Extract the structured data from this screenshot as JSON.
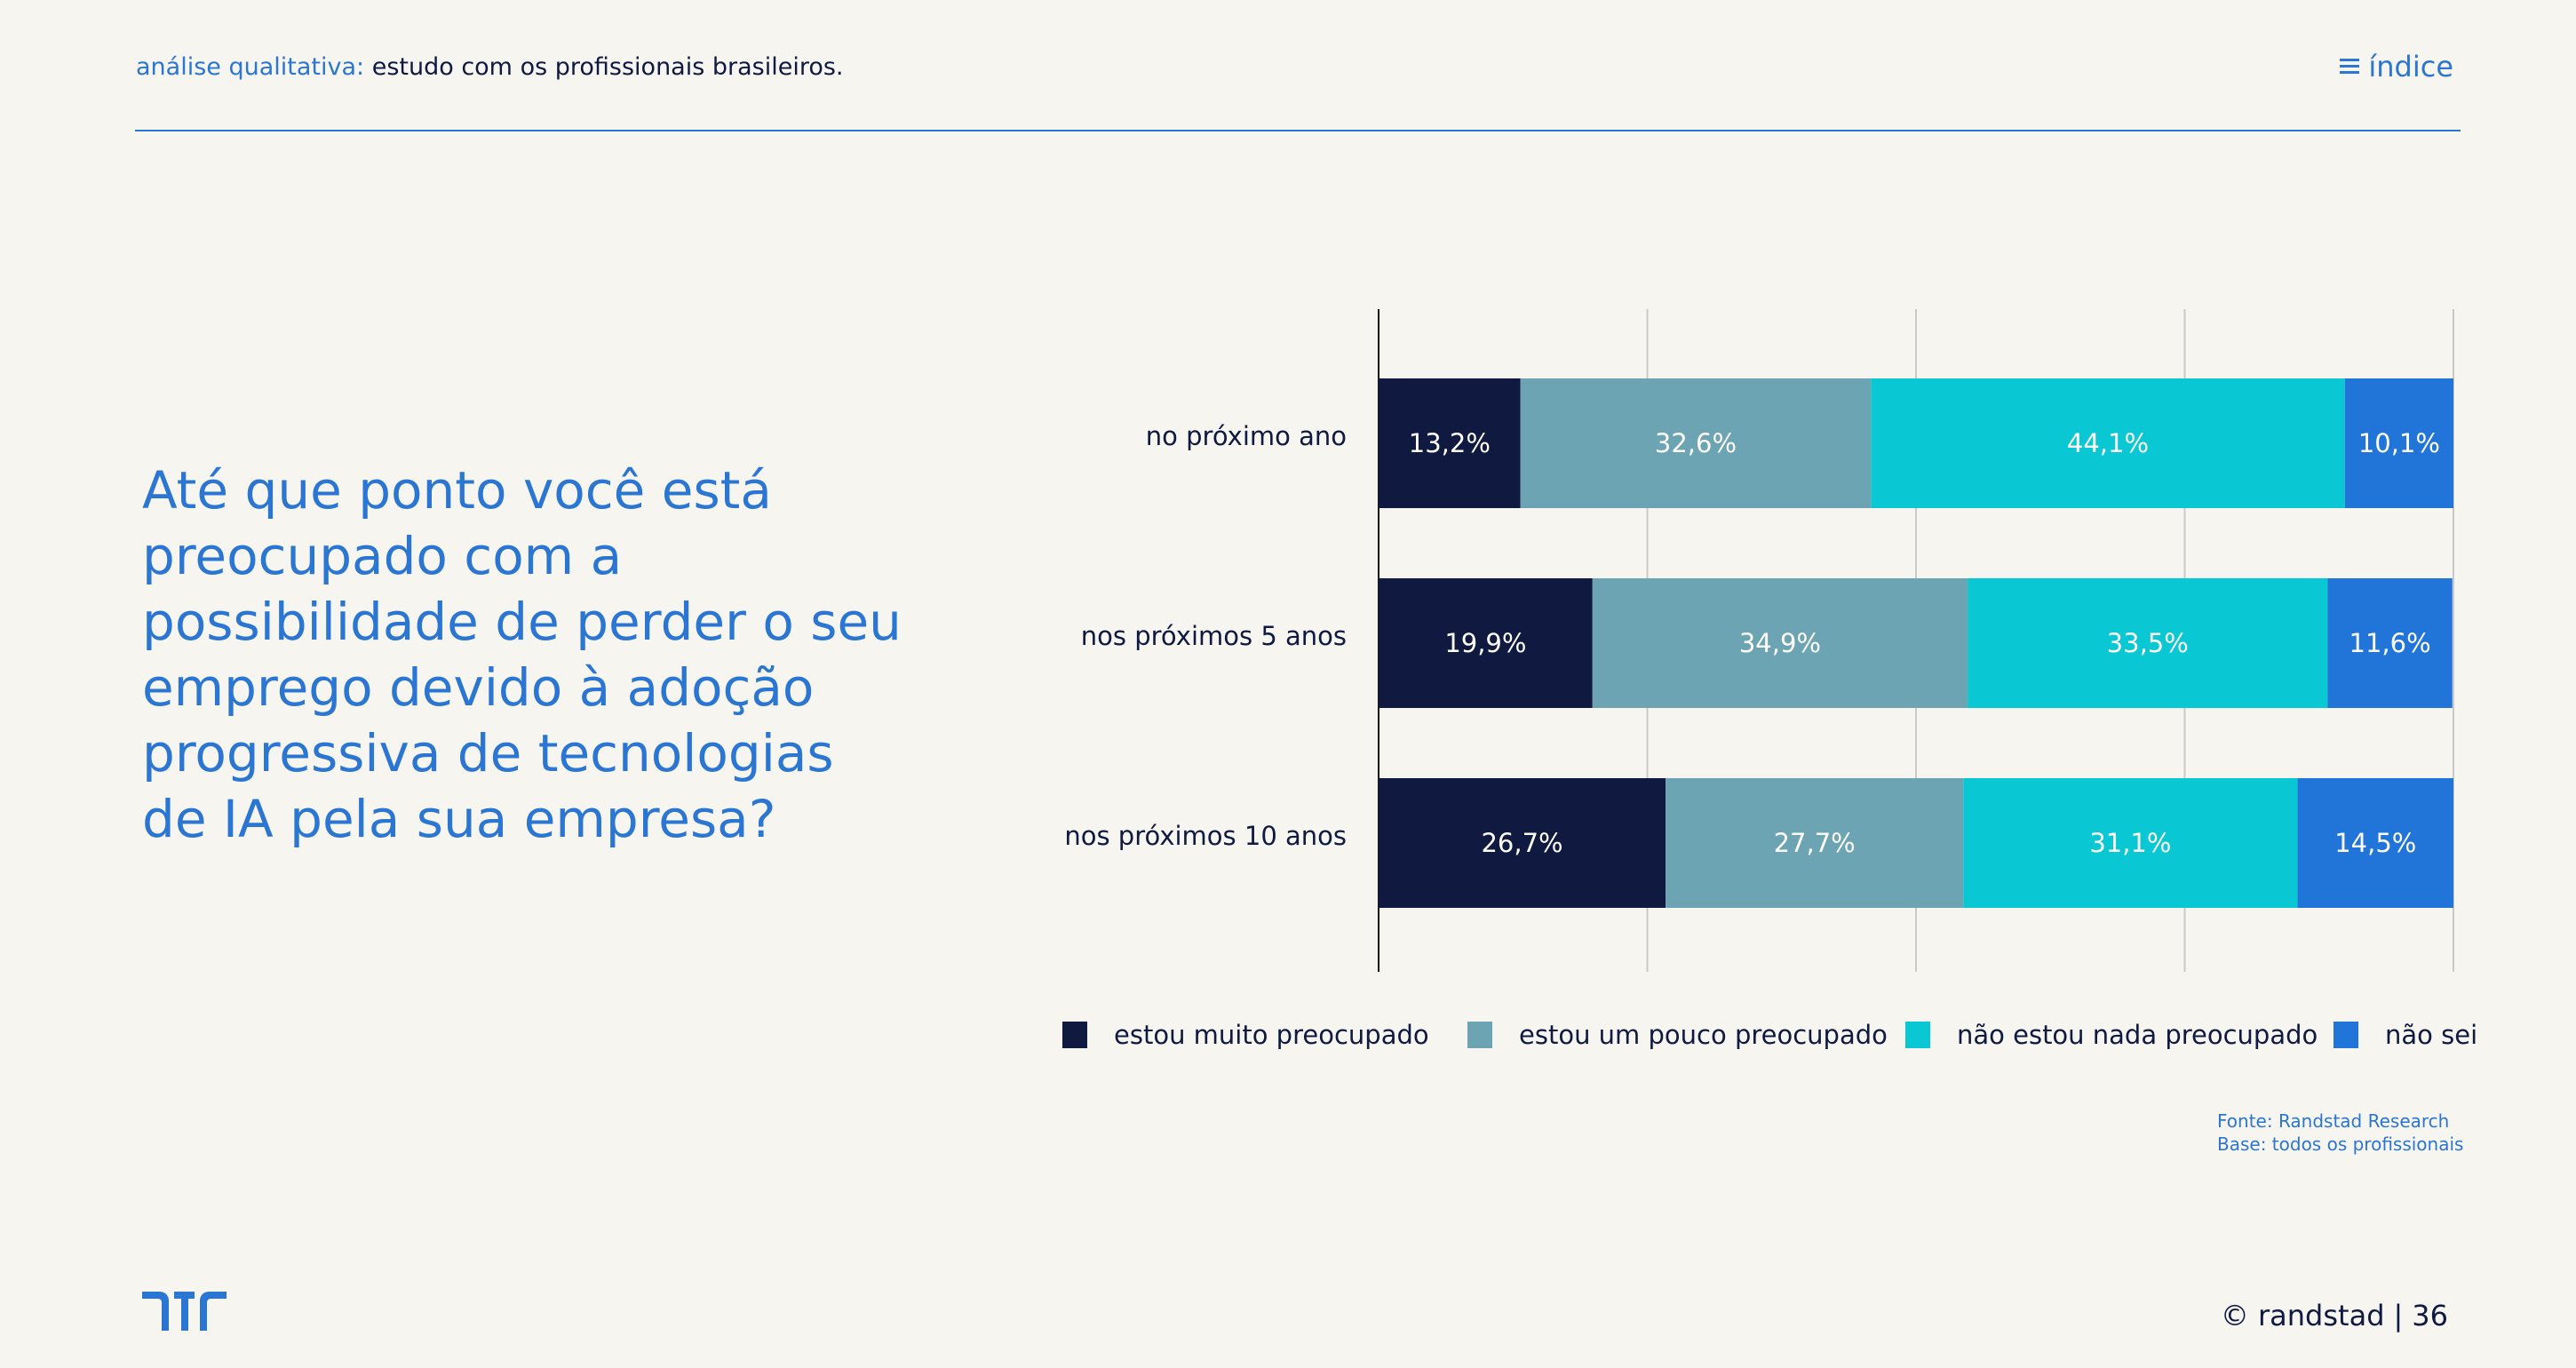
{
  "header": {
    "section_label": "análise qualitativa:",
    "section_text": "estudo com os profissionais brasileiros.",
    "index_label": "índice"
  },
  "question": "Até que ponto você está preocupado com a possibilidade de perder o seu emprego devido à adoção progressiva de tecnologias de IA pela sua empresa?",
  "chart_data": {
    "type": "bar",
    "orientation": "horizontal",
    "stacked": true,
    "categories": [
      "no próximo ano",
      "nos próximos 5 anos",
      "nos próximos 10 anos"
    ],
    "series": [
      {
        "name": "estou muito preocupado",
        "color": "#101a40",
        "values": [
          13.2,
          19.9,
          26.7
        ],
        "labels": [
          "13,2%",
          "19,9%",
          "26,7%"
        ]
      },
      {
        "name": "estou um pouco preocupado",
        "color": "#6ca4b3",
        "values": [
          32.6,
          34.9,
          27.7
        ],
        "labels": [
          "32,6%",
          "34,9%",
          "27,7%"
        ]
      },
      {
        "name": "não estou nada preocupado",
        "color": "#09c8d4",
        "values": [
          44.1,
          33.5,
          31.1
        ],
        "labels": [
          "44,1%",
          "33,5%",
          "31,1%"
        ]
      },
      {
        "name": "não sei",
        "color": "#2175d9",
        "values": [
          10.1,
          11.6,
          14.5
        ],
        "labels": [
          "10,1%",
          "11,6%",
          "14,5%"
        ]
      }
    ],
    "xlim": [
      0,
      100
    ],
    "grid": true,
    "legend_position": "bottom"
  },
  "source": {
    "line1": "Fonte: Randstad Research",
    "line2": "Base: todos os profissionais"
  },
  "footer": {
    "brand": "© randstad",
    "separator": "|",
    "page_number": "36"
  },
  "colors": {
    "accent": "#2b76d3",
    "dark": "#0f1941",
    "background": "#f6f5f0"
  }
}
